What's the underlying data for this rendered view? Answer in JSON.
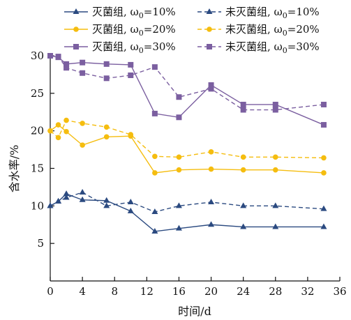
{
  "chart_data": {
    "type": "line",
    "xlabel": "时间/d",
    "ylabel": "含水率/%",
    "xlim": [
      0,
      36
    ],
    "ylim": [
      0,
      30
    ],
    "xticks": [
      "0",
      "4",
      "8",
      "12",
      "16",
      "20",
      "24",
      "28",
      "32",
      "36"
    ],
    "yticks": [
      "5",
      "10",
      "15",
      "20",
      "25",
      "30"
    ],
    "grid": false,
    "legend_position": "top",
    "series": [
      {
        "name": "灭菌组, ω0=10%",
        "label_prefix": "灭菌组, ω",
        "label_sub": "0",
        "label_suffix": "=10%",
        "color": "#2b4a80",
        "marker": "triangle",
        "dash": "solid",
        "points": [
          [
            0,
            10.0
          ],
          [
            1,
            10.6
          ],
          [
            2,
            11.6
          ],
          [
            4,
            10.8
          ],
          [
            7,
            10.7
          ],
          [
            10,
            9.3
          ],
          [
            13,
            6.6
          ],
          [
            16,
            7.0
          ],
          [
            20,
            7.5
          ],
          [
            24,
            7.2
          ],
          [
            28,
            7.2
          ],
          [
            34,
            7.2
          ]
        ]
      },
      {
        "name": "未灭菌组, ω0=10%",
        "label_prefix": "未灭菌组, ω",
        "label_sub": "0",
        "label_suffix": "=10%",
        "color": "#2b4a80",
        "marker": "triangle",
        "dash": "dashed",
        "points": [
          [
            0,
            10.0
          ],
          [
            1,
            10.6
          ],
          [
            2,
            11.1
          ],
          [
            4,
            11.8
          ],
          [
            7,
            10.0
          ],
          [
            10,
            10.5
          ],
          [
            13,
            9.2
          ],
          [
            16,
            10.0
          ],
          [
            20,
            10.5
          ],
          [
            24,
            10.0
          ],
          [
            28,
            10.0
          ],
          [
            34,
            9.6
          ]
        ]
      },
      {
        "name": "灭菌组, ω0=20%",
        "label_prefix": "灭菌组, ω",
        "label_sub": "0",
        "label_suffix": "=20%",
        "color": "#f5bd0f",
        "marker": "circle",
        "dash": "solid",
        "points": [
          [
            0,
            20.0
          ],
          [
            1,
            20.8
          ],
          [
            2,
            19.9
          ],
          [
            4,
            18.1
          ],
          [
            7,
            19.2
          ],
          [
            10,
            19.3
          ],
          [
            13,
            14.4
          ],
          [
            16,
            14.8
          ],
          [
            20,
            14.9
          ],
          [
            24,
            14.8
          ],
          [
            28,
            14.8
          ],
          [
            34,
            14.4
          ]
        ]
      },
      {
        "name": "未灭菌组, ω0=20%",
        "label_prefix": "未灭菌组, ω",
        "label_sub": "0",
        "label_suffix": "=20%",
        "color": "#f5bd0f",
        "marker": "circle",
        "dash": "dashed",
        "points": [
          [
            0,
            20.0
          ],
          [
            1,
            19.1
          ],
          [
            2,
            21.4
          ],
          [
            4,
            21.0
          ],
          [
            7,
            20.5
          ],
          [
            10,
            19.5
          ],
          [
            13,
            16.6
          ],
          [
            16,
            16.5
          ],
          [
            20,
            17.2
          ],
          [
            24,
            16.5
          ],
          [
            28,
            16.5
          ],
          [
            34,
            16.4
          ]
        ]
      },
      {
        "name": "灭菌组, ω0=30%",
        "label_prefix": "灭菌组, ω",
        "label_sub": "0",
        "label_suffix": "=30%",
        "color": "#7b5fa0",
        "marker": "square",
        "dash": "solid",
        "points": [
          [
            0,
            30.0
          ],
          [
            1,
            29.8
          ],
          [
            2,
            28.9
          ],
          [
            4,
            29.1
          ],
          [
            7,
            28.9
          ],
          [
            10,
            28.8
          ],
          [
            13,
            22.3
          ],
          [
            16,
            21.8
          ],
          [
            20,
            26.1
          ],
          [
            24,
            23.5
          ],
          [
            28,
            23.5
          ],
          [
            34,
            20.8
          ]
        ]
      },
      {
        "name": "未灭菌组, ω0=30%",
        "label_prefix": "未灭菌组, ω",
        "label_sub": "0",
        "label_suffix": "=30%",
        "color": "#7b5fa0",
        "marker": "square",
        "dash": "dashed",
        "points": [
          [
            0,
            30.0
          ],
          [
            1,
            29.9
          ],
          [
            2,
            28.4
          ],
          [
            4,
            27.7
          ],
          [
            7,
            27.0
          ],
          [
            10,
            27.4
          ],
          [
            13,
            28.5
          ],
          [
            16,
            24.5
          ],
          [
            20,
            25.6
          ],
          [
            24,
            22.8
          ],
          [
            28,
            22.8
          ],
          [
            34,
            23.5
          ]
        ]
      }
    ]
  }
}
